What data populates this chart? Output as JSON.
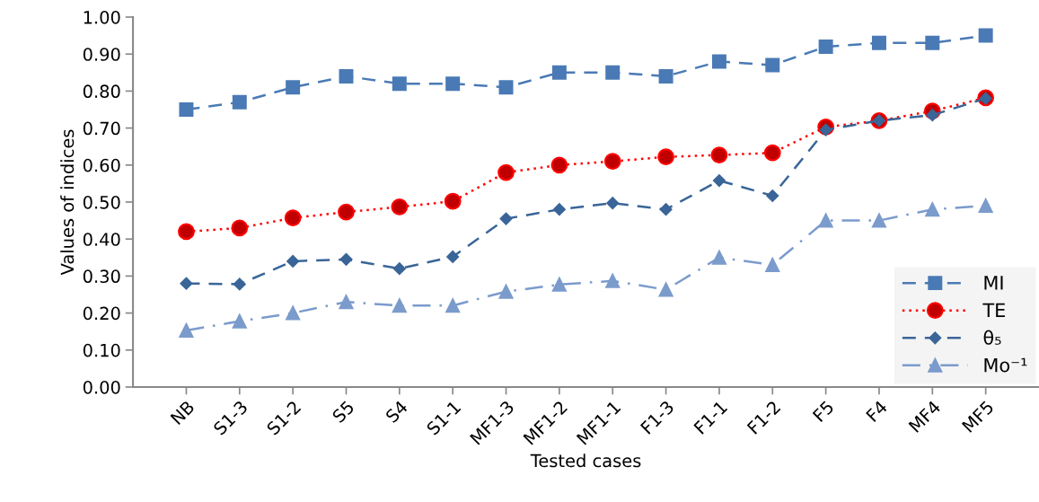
{
  "chart_data": {
    "type": "line",
    "xlabel": "Tested cases",
    "ylabel": "Values of indices",
    "categories": [
      "NB",
      "S1-3",
      "S1-2",
      "S5",
      "S4",
      "S1-1",
      "MF1-3",
      "MF1-2",
      "MF1-1",
      "F1-3",
      "F1-1",
      "F1-2",
      "F5",
      "F4",
      "MF4",
      "MF5"
    ],
    "ylim": [
      0,
      1
    ],
    "yticks": [
      {
        "value": 0,
        "label": "0.00"
      },
      {
        "value": 0.1,
        "label": "0.10"
      },
      {
        "value": 0.2,
        "label": "0.20"
      },
      {
        "value": 0.3,
        "label": "0.30"
      },
      {
        "value": 0.4,
        "label": "0.40"
      },
      {
        "value": 0.5,
        "label": "0.50"
      },
      {
        "value": 0.6,
        "label": "0.60"
      },
      {
        "value": 0.7,
        "label": "0.70"
      },
      {
        "value": 0.8,
        "label": "0.80"
      },
      {
        "value": 0.9,
        "label": "0.90"
      },
      {
        "value": 1,
        "label": "1.00"
      }
    ],
    "grid": false,
    "legend": "bottom right",
    "series": [
      {
        "name": "MI",
        "color": "#4a7ab5",
        "marker": "square",
        "line_style": "dashed",
        "values": [
          0.75,
          0.77,
          0.81,
          0.84,
          0.82,
          0.82,
          0.81,
          0.85,
          0.85,
          0.84,
          0.88,
          0.87,
          0.92,
          0.93,
          0.93,
          0.95
        ]
      },
      {
        "name": "TE",
        "color": "#ff0000",
        "marker": "circle",
        "line_style": "dotted",
        "values": [
          0.42,
          0.43,
          0.457,
          0.473,
          0.487,
          0.502,
          0.58,
          0.6,
          0.61,
          0.622,
          0.627,
          0.633,
          0.703,
          0.72,
          0.746,
          0.782
        ]
      },
      {
        "name": "θ₅",
        "color": "#3a6598",
        "marker": "diamond",
        "line_style": "dashed",
        "values": [
          0.28,
          0.278,
          0.34,
          0.345,
          0.32,
          0.352,
          0.455,
          0.48,
          0.497,
          0.48,
          0.558,
          0.517,
          0.695,
          0.72,
          0.735,
          0.78
        ]
      },
      {
        "name": "Mo⁻¹",
        "color": "#7b9bcc",
        "marker": "triangle",
        "line_style": "dashdot",
        "values": [
          0.153,
          0.178,
          0.2,
          0.23,
          0.22,
          0.22,
          0.258,
          0.277,
          0.287,
          0.263,
          0.35,
          0.33,
          0.45,
          0.45,
          0.48,
          0.49
        ]
      }
    ]
  }
}
